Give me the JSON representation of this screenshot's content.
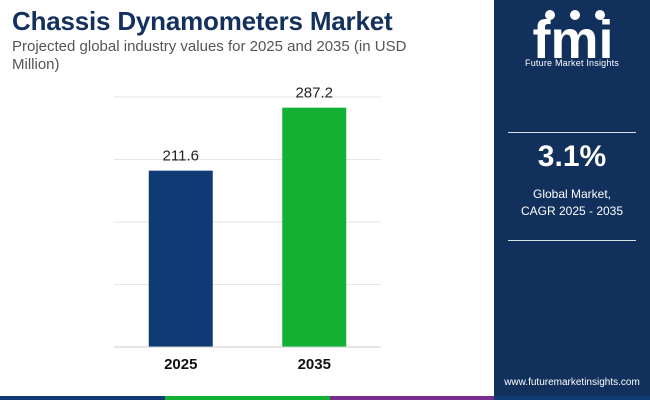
{
  "header": {
    "title": "Chassis Dynamometers Market",
    "subtitle": "Projected global industry values for 2025 and 2035 (in USD Million)"
  },
  "chart_data": {
    "type": "bar",
    "categories": [
      "2025",
      "2035"
    ],
    "values": [
      211.6,
      287.2
    ],
    "value_labels": [
      "211.6",
      "287.2"
    ],
    "bar_colors": [
      "#0f3a73",
      "#12b033"
    ],
    "ylim": [
      0,
      300
    ],
    "grid": true,
    "xlabel": "",
    "ylabel": ""
  },
  "sidebar": {
    "logo_text": "fmi",
    "logo_caption": "Future Market Insights",
    "cagr_value": "3.1%",
    "cagr_label_line1": "Global Market,",
    "cagr_label_line2": "CAGR 2025 - 2035",
    "website": "www.futuremarketinsights.com"
  },
  "colors": {
    "title": "#14315e",
    "panel": "#11305c",
    "footer": [
      "#0f3a73",
      "#12b033",
      "#7a2c8f",
      "#0f3a73"
    ]
  }
}
